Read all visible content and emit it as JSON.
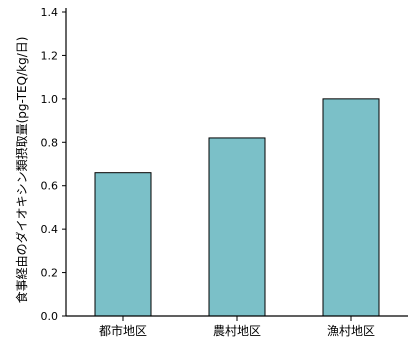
{
  "chart_data": {
    "type": "bar",
    "categories": [
      "都市地区",
      "農村地区",
      "漁村地区"
    ],
    "values": [
      0.66,
      0.82,
      1.0
    ],
    "title": "",
    "xlabel": "",
    "ylabel": "食事経由のダイオキシン類摂取量(pg-TEQ/kg/日)",
    "ylim": [
      0,
      1.4
    ],
    "yticks": [
      "0.0",
      "0.2",
      "0.4",
      "0.6",
      "0.8",
      "1.0",
      "1.2",
      "1.4"
    ],
    "grid": false,
    "bar_color": "#7bc0c8",
    "bar_edge_color": "#000000"
  }
}
